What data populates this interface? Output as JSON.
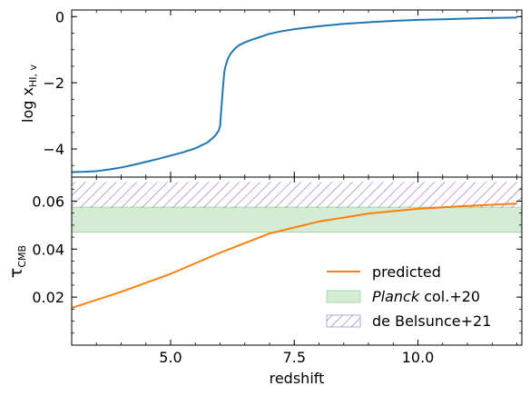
{
  "chart_data": [
    {
      "type": "line",
      "panel": "top",
      "xlim": [
        3.0,
        12.1
      ],
      "ylim": [
        -4.85,
        0.2
      ],
      "yticks": [
        0,
        -2,
        -4
      ],
      "ytick_labels": [
        "0",
        "−2",
        "−4"
      ],
      "ylabel": "log x",
      "ylabel_sub": "HI, v",
      "grid": false,
      "series": [
        {
          "color": "#1f77b4",
          "x": [
            3.0,
            3.25,
            3.5,
            3.75,
            4.0,
            4.25,
            4.5,
            4.75,
            5.0,
            5.25,
            5.5,
            5.75,
            5.9,
            5.97,
            6.0,
            6.02,
            6.05,
            6.08,
            6.1,
            6.15,
            6.2,
            6.25,
            6.3,
            6.35,
            6.4,
            6.5,
            6.6,
            6.8,
            7.0,
            7.25,
            7.5,
            8.0,
            8.5,
            9.0,
            9.5,
            10.0,
            10.5,
            11.0,
            11.5,
            12.0
          ],
          "y": [
            -4.7,
            -4.69,
            -4.67,
            -4.62,
            -4.56,
            -4.48,
            -4.39,
            -4.3,
            -4.2,
            -4.1,
            -3.98,
            -3.8,
            -3.6,
            -3.45,
            -3.3,
            -2.9,
            -2.3,
            -1.75,
            -1.55,
            -1.3,
            -1.15,
            -1.05,
            -0.97,
            -0.9,
            -0.85,
            -0.78,
            -0.72,
            -0.62,
            -0.52,
            -0.44,
            -0.38,
            -0.29,
            -0.22,
            -0.17,
            -0.13,
            -0.1,
            -0.08,
            -0.06,
            -0.04,
            -0.03
          ]
        }
      ]
    },
    {
      "type": "line",
      "panel": "bottom",
      "xlim": [
        3.0,
        12.1
      ],
      "ylim": [
        0.0,
        0.07
      ],
      "xticks": [
        5.0,
        7.5,
        10.0
      ],
      "xtick_labels": [
        "5.0",
        "7.5",
        "10.0"
      ],
      "yticks": [
        0.02,
        0.04,
        0.06
      ],
      "ytick_labels": [
        "0.02",
        "0.04",
        "0.06"
      ],
      "xlabel": "redshift",
      "ylabel": "τ",
      "ylabel_sub": "CMB",
      "grid": false,
      "legend_position": "lower-right",
      "series": [
        {
          "name": "predicted",
          "color": "#ff7f0e",
          "x": [
            3,
            4,
            5,
            6,
            7,
            8,
            9,
            10,
            11,
            12
          ],
          "y": [
            0.0155,
            0.0222,
            0.0297,
            0.0385,
            0.0465,
            0.0515,
            0.0548,
            0.0568,
            0.058,
            0.059
          ]
        }
      ],
      "bands": [
        {
          "name_italic": "Planck",
          "name_rest": " col.+20",
          "y0": 0.047,
          "y1": 0.0575,
          "fill": "#b7e0b7",
          "edge": "#7fc97f",
          "opacity": 0.6
        },
        {
          "name": "de Belsunce+21",
          "y0": 0.0572,
          "y1": 0.068,
          "hatch_color": "#9467bd"
        }
      ]
    }
  ]
}
